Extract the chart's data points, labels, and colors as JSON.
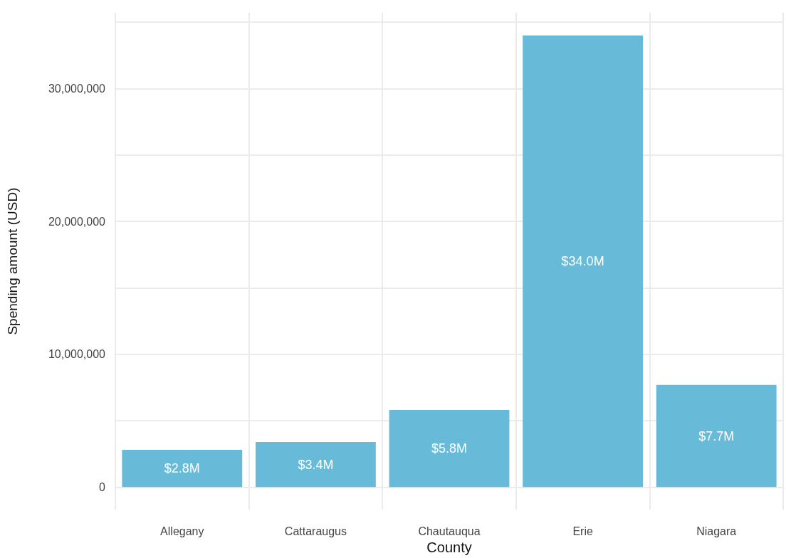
{
  "chart_data": {
    "type": "bar",
    "xlabel": "County",
    "ylabel": "Spending amount (USD)",
    "categories": [
      "Allegany",
      "Cattaraugus",
      "Chautauqua",
      "Erie",
      "Niagara"
    ],
    "values": [
      2800000,
      3400000,
      5800000,
      34000000,
      7700000
    ],
    "value_labels": [
      "$2.8M",
      "$3.4M",
      "$5.8M",
      "$34.0M",
      "$7.7M"
    ],
    "color": "#67bbd8",
    "ylim": [
      -1700000,
      35700000
    ],
    "yticks": [
      {
        "value": 0,
        "label": "0"
      },
      {
        "value": 5000000,
        "label": null
      },
      {
        "value": 10000000,
        "label": "10,000,000"
      },
      {
        "value": 15000000,
        "label": null
      },
      {
        "value": 20000000,
        "label": "20,000,000"
      },
      {
        "value": 25000000,
        "label": null
      },
      {
        "value": 30000000,
        "label": "30,000,000"
      },
      {
        "value": 35000000,
        "label": null
      }
    ],
    "grid": true
  }
}
